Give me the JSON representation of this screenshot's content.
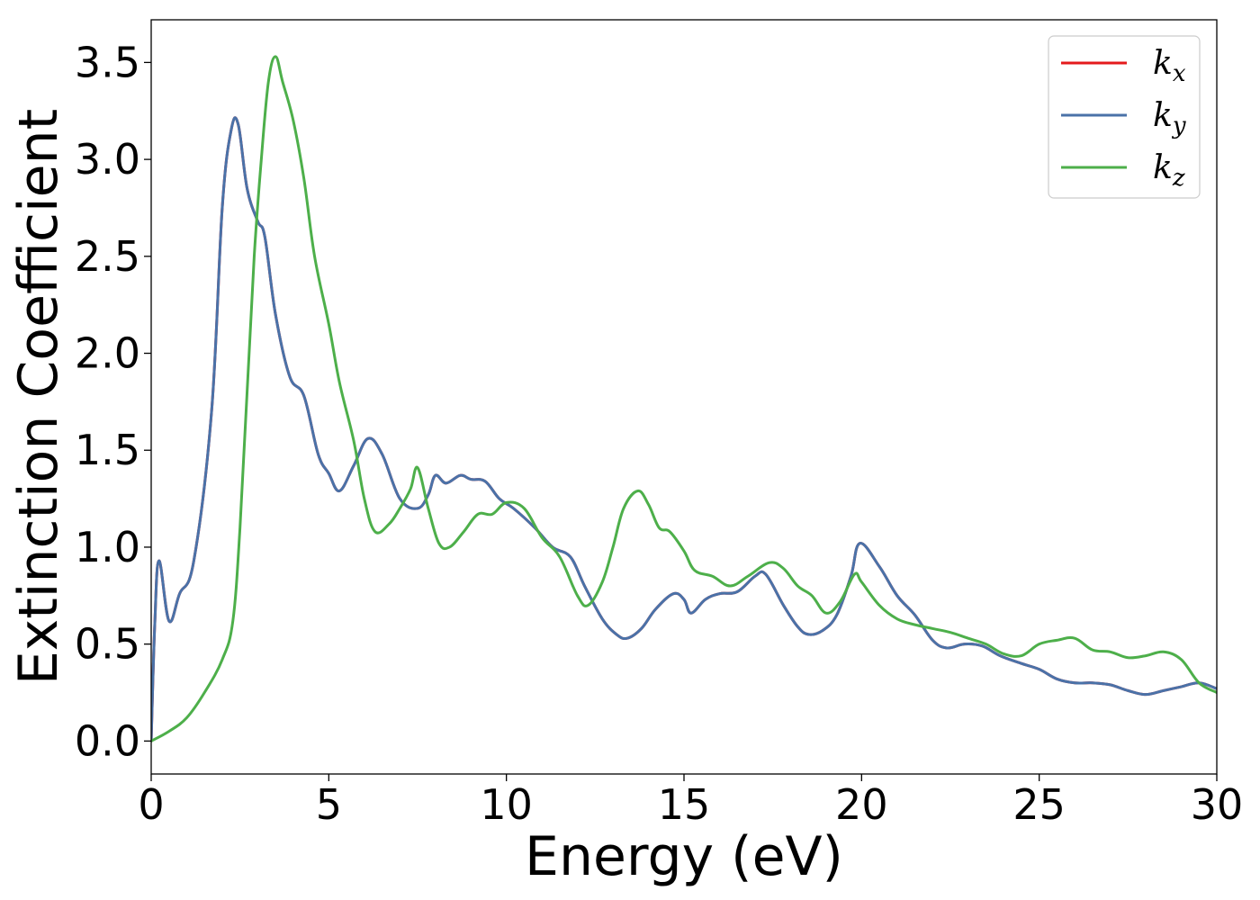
{
  "chart_data": {
    "type": "line",
    "xlabel": "Energy (eV)",
    "ylabel": "Extinction Coefficient",
    "xlim": [
      0,
      30
    ],
    "ylim": [
      -0.17,
      3.72
    ],
    "xticks": [
      0,
      5,
      10,
      15,
      20,
      25,
      30
    ],
    "yticks": [
      0.0,
      0.5,
      1.0,
      1.5,
      2.0,
      2.5,
      3.0,
      3.5
    ],
    "xtick_labels": [
      "0",
      "5",
      "10",
      "15",
      "20",
      "25",
      "30"
    ],
    "ytick_labels": [
      "0.0",
      "0.5",
      "1.0",
      "1.5",
      "2.0",
      "2.5",
      "3.0",
      "3.5"
    ],
    "grid": false,
    "legend_position": "top-right",
    "series": [
      {
        "name": "k_x",
        "legend_base": "k",
        "legend_sub": "x",
        "color": "#e41a1c",
        "x": [
          0,
          0.1,
          0.22,
          0.5,
          0.8,
          1.2,
          1.7,
          2.0,
          2.25,
          2.45,
          2.7,
          3.0,
          3.2,
          3.5,
          3.9,
          4.3,
          4.7,
          5.0,
          5.3,
          5.7,
          6.1,
          6.5,
          7.0,
          7.5,
          7.8,
          8.0,
          8.3,
          8.7,
          9.0,
          9.4,
          9.8,
          10.2,
          10.8,
          11.3,
          11.8,
          12.2,
          12.7,
          13.1,
          13.4,
          13.8,
          14.2,
          14.7,
          15.0,
          15.2,
          15.6,
          16.0,
          16.5,
          17.0,
          17.3,
          17.8,
          18.2,
          18.5,
          18.9,
          19.3,
          19.7,
          19.95,
          20.5,
          21.0,
          21.5,
          22.0,
          22.4,
          22.9,
          23.4,
          23.9,
          24.5,
          25.0,
          25.5,
          26.0,
          26.5,
          27.0,
          27.5,
          28.0,
          28.5,
          29.0,
          29.5,
          30.0
        ],
        "y": [
          0.0,
          0.6,
          0.93,
          0.62,
          0.76,
          0.93,
          1.7,
          2.75,
          3.15,
          3.18,
          2.85,
          2.68,
          2.6,
          2.2,
          1.88,
          1.78,
          1.48,
          1.38,
          1.29,
          1.42,
          1.56,
          1.48,
          1.25,
          1.2,
          1.27,
          1.37,
          1.33,
          1.37,
          1.35,
          1.34,
          1.25,
          1.2,
          1.1,
          1.0,
          0.95,
          0.8,
          0.63,
          0.55,
          0.53,
          0.58,
          0.68,
          0.76,
          0.73,
          0.66,
          0.73,
          0.76,
          0.77,
          0.85,
          0.86,
          0.7,
          0.59,
          0.55,
          0.57,
          0.65,
          0.85,
          1.02,
          0.9,
          0.75,
          0.65,
          0.52,
          0.48,
          0.5,
          0.49,
          0.44,
          0.4,
          0.37,
          0.32,
          0.3,
          0.3,
          0.29,
          0.26,
          0.24,
          0.26,
          0.28,
          0.3,
          0.27
        ]
      },
      {
        "name": "k_y",
        "legend_base": "k",
        "legend_sub": "y",
        "color": "#4a72a8",
        "x": [
          0,
          0.1,
          0.22,
          0.5,
          0.8,
          1.2,
          1.7,
          2.0,
          2.25,
          2.45,
          2.7,
          3.0,
          3.2,
          3.5,
          3.9,
          4.3,
          4.7,
          5.0,
          5.3,
          5.7,
          6.1,
          6.5,
          7.0,
          7.5,
          7.8,
          8.0,
          8.3,
          8.7,
          9.0,
          9.4,
          9.8,
          10.2,
          10.8,
          11.3,
          11.8,
          12.2,
          12.7,
          13.1,
          13.4,
          13.8,
          14.2,
          14.7,
          15.0,
          15.2,
          15.6,
          16.0,
          16.5,
          17.0,
          17.3,
          17.8,
          18.2,
          18.5,
          18.9,
          19.3,
          19.7,
          19.95,
          20.5,
          21.0,
          21.5,
          22.0,
          22.4,
          22.9,
          23.4,
          23.9,
          24.5,
          25.0,
          25.5,
          26.0,
          26.5,
          27.0,
          27.5,
          28.0,
          28.5,
          29.0,
          29.5,
          30.0
        ],
        "y": [
          0.0,
          0.6,
          0.93,
          0.62,
          0.76,
          0.93,
          1.7,
          2.75,
          3.15,
          3.18,
          2.85,
          2.68,
          2.6,
          2.2,
          1.88,
          1.78,
          1.48,
          1.38,
          1.29,
          1.42,
          1.56,
          1.48,
          1.25,
          1.2,
          1.27,
          1.37,
          1.33,
          1.37,
          1.35,
          1.34,
          1.25,
          1.2,
          1.1,
          1.0,
          0.95,
          0.8,
          0.63,
          0.55,
          0.53,
          0.58,
          0.68,
          0.76,
          0.73,
          0.66,
          0.73,
          0.76,
          0.77,
          0.85,
          0.86,
          0.7,
          0.59,
          0.55,
          0.57,
          0.65,
          0.85,
          1.02,
          0.9,
          0.75,
          0.65,
          0.52,
          0.48,
          0.5,
          0.49,
          0.44,
          0.4,
          0.37,
          0.32,
          0.3,
          0.3,
          0.29,
          0.26,
          0.24,
          0.26,
          0.28,
          0.3,
          0.27
        ]
      },
      {
        "name": "k_z",
        "legend_base": "k",
        "legend_sub": "z",
        "color": "#4daf4a",
        "x": [
          0,
          0.5,
          1.0,
          1.5,
          2.0,
          2.3,
          2.5,
          2.7,
          2.9,
          3.1,
          3.3,
          3.5,
          3.7,
          4.0,
          4.3,
          4.6,
          5.0,
          5.3,
          5.7,
          6.0,
          6.3,
          6.7,
          7.0,
          7.3,
          7.5,
          7.8,
          8.1,
          8.4,
          8.8,
          9.2,
          9.6,
          10.0,
          10.5,
          11.0,
          11.5,
          12.0,
          12.3,
          12.7,
          13.0,
          13.3,
          13.7,
          14.0,
          14.3,
          14.6,
          15.0,
          15.3,
          15.8,
          16.3,
          16.8,
          17.4,
          17.8,
          18.2,
          18.6,
          19.0,
          19.4,
          19.8,
          20.0,
          20.5,
          21.0,
          21.5,
          22.0,
          22.5,
          23.0,
          23.5,
          24.0,
          24.5,
          25.0,
          25.5,
          26.0,
          26.5,
          27.0,
          27.5,
          28.0,
          28.5,
          29.0,
          29.5,
          30.0
        ],
        "y": [
          0.0,
          0.05,
          0.12,
          0.25,
          0.42,
          0.62,
          1.1,
          1.8,
          2.5,
          3.0,
          3.4,
          3.53,
          3.4,
          3.2,
          2.9,
          2.5,
          2.15,
          1.85,
          1.55,
          1.25,
          1.08,
          1.12,
          1.2,
          1.3,
          1.41,
          1.2,
          1.02,
          1.0,
          1.08,
          1.17,
          1.17,
          1.23,
          1.2,
          1.05,
          0.95,
          0.75,
          0.7,
          0.82,
          1.0,
          1.2,
          1.29,
          1.22,
          1.1,
          1.08,
          0.98,
          0.88,
          0.85,
          0.8,
          0.85,
          0.92,
          0.89,
          0.8,
          0.75,
          0.66,
          0.72,
          0.86,
          0.82,
          0.7,
          0.63,
          0.6,
          0.58,
          0.56,
          0.53,
          0.5,
          0.45,
          0.44,
          0.5,
          0.52,
          0.53,
          0.47,
          0.46,
          0.43,
          0.44,
          0.46,
          0.42,
          0.3,
          0.25
        ]
      }
    ]
  }
}
